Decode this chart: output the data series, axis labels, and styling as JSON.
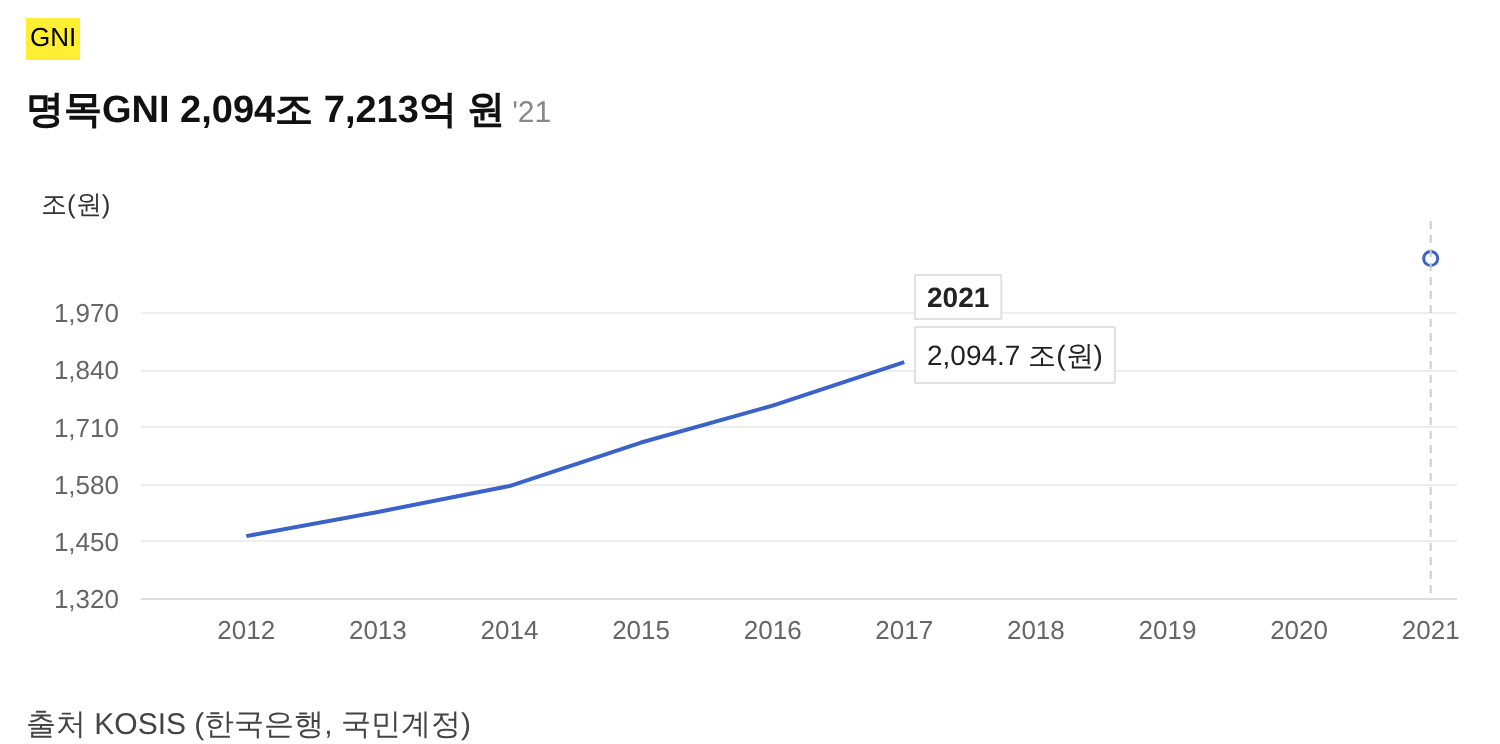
{
  "chart_data": {
    "type": "line",
    "title": "명목GNI 2,094조 7,213억 원",
    "subtitle": "'21",
    "ylabel": "조(원)",
    "x": [
      2012,
      2013,
      2014,
      2015,
      2016,
      2017,
      2018,
      2019,
      2020,
      2021
    ],
    "series": [
      {
        "color": "#3a62c8",
        "values": [
          1463,
          1518,
          1577,
          1676,
          1760,
          1859,
          null,
          null,
          null,
          2094.7
        ]
      }
    ],
    "xlim": [
      2011.2,
      2021.2
    ],
    "xticks": [
      2012,
      2013,
      2014,
      2015,
      2016,
      2017,
      2018,
      2019,
      2020,
      2021
    ],
    "ylim": [
      1320,
      2180
    ],
    "yticks": [
      {
        "value": 1320,
        "label": "1,320"
      },
      {
        "value": 1450,
        "label": "1,450"
      },
      {
        "value": 1580,
        "label": "1,580"
      },
      {
        "value": 1710,
        "label": "1,710"
      },
      {
        "value": 1840,
        "label": "1,840"
      },
      {
        "value": 1970,
        "label": "1,970"
      }
    ],
    "grid": "y",
    "line_style": "solid",
    "ref_lines": [
      {
        "axis": "x",
        "value": 2021,
        "label": null,
        "color": "#cccccc",
        "line_style": "dashed"
      }
    ],
    "annotations": [
      "GNI",
      "2021",
      "2,094.7 조(원)",
      "출처 KOSIS (한국은행, 국민계정)"
    ]
  }
}
